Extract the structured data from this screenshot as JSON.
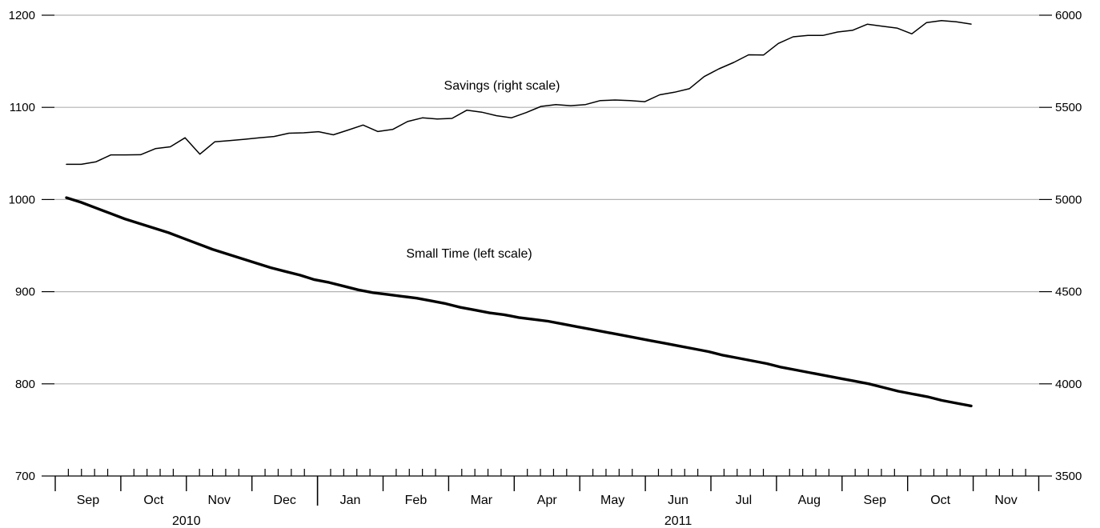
{
  "chart_data": {
    "type": "line",
    "title": "",
    "grid": true,
    "left_axis": {
      "ylim": [
        700,
        1200
      ],
      "ticks": [
        "700",
        "800",
        "900",
        "1000",
        "1100",
        "1200"
      ]
    },
    "right_axis": {
      "ylim": [
        3500,
        6000
      ],
      "ticks": [
        "3500",
        "4000",
        "4500",
        "5000",
        "5500",
        "6000"
      ]
    },
    "x_axis": {
      "months": [
        "Sep",
        "Oct",
        "Nov",
        "Dec",
        "Jan",
        "Feb",
        "Mar",
        "Apr",
        "May",
        "Jun",
        "Jul",
        "Aug",
        "Sep",
        "Oct",
        "Nov"
      ],
      "years": [
        {
          "label": "2010",
          "from_month": 0,
          "to_month": 3
        },
        {
          "label": "2011",
          "from_month": 4,
          "to_month": 14
        }
      ]
    },
    "annotations": [
      {
        "text": "Savings (right scale)",
        "series": 0
      },
      {
        "text": "Small Time (left scale)",
        "series": 1
      }
    ],
    "series": [
      {
        "axis": "right",
        "color": "#000000",
        "values": [
          5191,
          5191,
          5205,
          5242,
          5242,
          5243,
          5276,
          5286,
          5335,
          5246,
          5313,
          5320,
          5327,
          5335,
          5342,
          5360,
          5362,
          5368,
          5351,
          5377,
          5404,
          5369,
          5380,
          5423,
          5443,
          5437,
          5440,
          5485,
          5474,
          5455,
          5443,
          5472,
          5505,
          5515,
          5509,
          5515,
          5537,
          5540,
          5537,
          5531,
          5568,
          5582,
          5601,
          5667,
          5709,
          5744,
          5785,
          5784,
          5847,
          5883,
          5890,
          5890,
          5909,
          5918,
          5951,
          5940,
          5930,
          5899,
          5960,
          5971,
          5964,
          5952
        ]
      },
      {
        "axis": "left",
        "color": "#000000",
        "values": [
          1002,
          997,
          991,
          985,
          979,
          974,
          969,
          964,
          958,
          952,
          946,
          941,
          936,
          931,
          926,
          922,
          918,
          913,
          910,
          906,
          902,
          899,
          897,
          895,
          893,
          890,
          887,
          883,
          880,
          877,
          875,
          872,
          870,
          868,
          865,
          862,
          859,
          856,
          853,
          850,
          847,
          844,
          841,
          838,
          835,
          831,
          828,
          825,
          822,
          818,
          815,
          812,
          809,
          806,
          803,
          800,
          796,
          792,
          789,
          786,
          782,
          779,
          776
        ]
      }
    ]
  }
}
